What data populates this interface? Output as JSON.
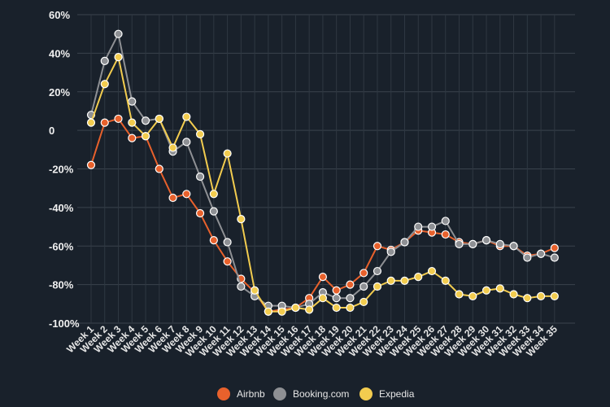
{
  "chart_data": {
    "type": "line",
    "title": "",
    "xlabel": "",
    "ylabel": "",
    "ylim": [
      -100,
      60
    ],
    "yticks": [
      60,
      40,
      20,
      0,
      -20,
      -40,
      -60,
      -80,
      -100
    ],
    "ytick_labels": [
      "60%",
      "40%",
      "20%",
      "0",
      "-20%",
      "-40%",
      "-60%",
      "-80%",
      "-100%"
    ],
    "grid": true,
    "legend_position": "bottom-center",
    "categories": [
      "Week 1",
      "Week 2",
      "Week 3",
      "Week 4",
      "Week 5",
      "Week 6",
      "Week 7",
      "Week 8",
      "Week 9",
      "Week 10",
      "Week 11",
      "Week 12",
      "Week 13",
      "Week 14",
      "Week 15",
      "Week 16",
      "Week 17",
      "Week 18",
      "Week 19",
      "Week 20",
      "Week 21",
      "Week 22",
      "Week 23",
      "Week 24",
      "Week 25",
      "Week 26",
      "Week 27",
      "Week 28",
      "Week 29",
      "Week 30",
      "Week 31",
      "Week 32",
      "Week 33",
      "Week 34",
      "Week 35"
    ],
    "series": [
      {
        "name": "Airbnb",
        "color": "#e8612c",
        "values": [
          -18,
          4,
          6,
          -4,
          -3,
          -20,
          -35,
          -33,
          -43,
          -57,
          -68,
          -77,
          -84,
          -94,
          -93,
          -92,
          -87,
          -76,
          -83,
          -80,
          -74,
          -60,
          -62,
          -58,
          -52,
          -53,
          -54,
          -58,
          -59,
          -57,
          -60,
          -60,
          -65,
          -64,
          -61
        ]
      },
      {
        "name": "Booking.com",
        "color": "#8e9094",
        "values": [
          8,
          36,
          50,
          15,
          5,
          6,
          -11,
          -6,
          -24,
          -42,
          -58,
          -81,
          -86,
          -91,
          -91,
          -92,
          -90,
          -84,
          -87,
          -87,
          -81,
          -73,
          -63,
          -58,
          -50,
          -50,
          -47,
          -59,
          -59,
          -57,
          -59,
          -60,
          -66,
          -64,
          -66
        ]
      },
      {
        "name": "Expedia",
        "color": "#f2cc4f",
        "values": [
          4,
          24,
          38,
          4,
          -3,
          6,
          -9,
          7,
          -2,
          -33,
          -12,
          -46,
          -83,
          -94,
          -94,
          -92,
          -93,
          -87,
          -92,
          -92,
          -89,
          -81,
          -78,
          -78,
          -76,
          -73,
          -78,
          -85,
          -86,
          -83,
          -82,
          -85,
          -87,
          -86,
          -86
        ]
      }
    ]
  }
}
